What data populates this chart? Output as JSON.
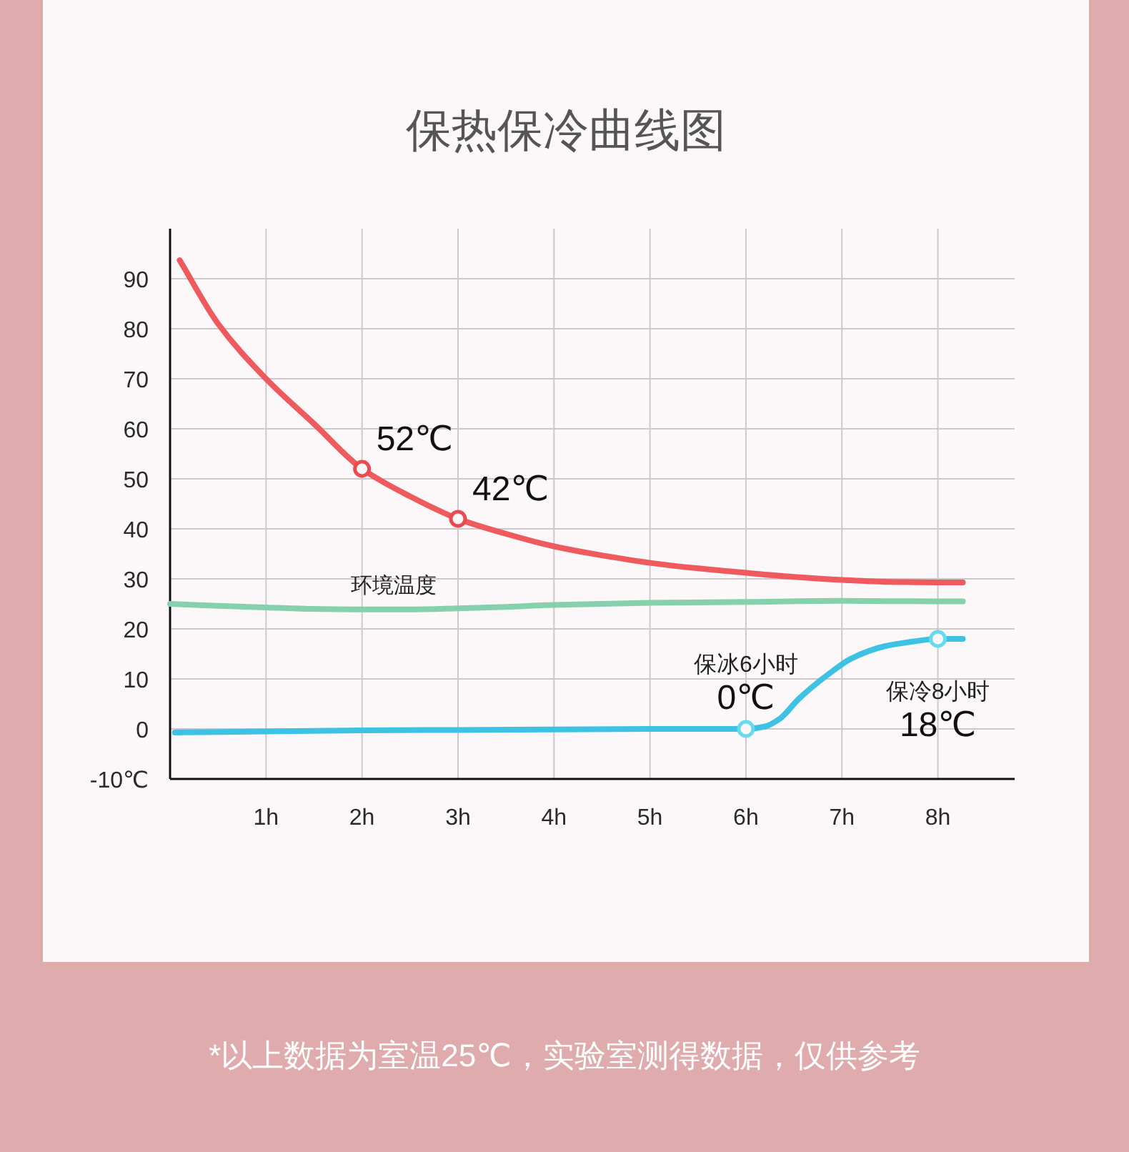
{
  "chart_data": {
    "type": "line",
    "title": "保热保冷曲线图",
    "annotations": [
      {
        "text": "保冰6小时",
        "x": 6,
        "y": 0
      },
      {
        "text": "保冷8小时",
        "x": 8,
        "y": 18
      },
      "*以上数据为室温25℃，实验室测得数据，仅供参考"
    ],
    "xlim": [
      0,
      8.8
    ],
    "xticks": [
      {
        "value": 1,
        "label": "1h"
      },
      {
        "value": 2,
        "label": "2h"
      },
      {
        "value": 3,
        "label": "3h"
      },
      {
        "value": 4,
        "label": "4h"
      },
      {
        "value": 5,
        "label": "5h"
      },
      {
        "value": 6,
        "label": "6h"
      },
      {
        "value": 7,
        "label": "7h"
      },
      {
        "value": 8,
        "label": "8h"
      }
    ],
    "ylim": [
      -10,
      100
    ],
    "yticks": [
      {
        "value": -10,
        "label": "-10℃"
      },
      0,
      10,
      20,
      30,
      40,
      50,
      60,
      70,
      80,
      90
    ],
    "grid": true,
    "series": [
      {
        "color": "#ef5a5e",
        "x": [
          0.1,
          0.5,
          1,
          1.5,
          2,
          2.5,
          3,
          3.5,
          4,
          4.5,
          5,
          5.5,
          6,
          6.5,
          7,
          7.5,
          8,
          8.26
        ],
        "values": [
          93.7,
          81,
          70,
          61,
          52,
          46.5,
          42,
          39,
          36.5,
          34.7,
          33.2,
          32.1,
          31.2,
          30.4,
          29.8,
          29.4,
          29.3,
          29.3
        ]
      },
      {
        "name": "环境温度",
        "color": "#86d0ab",
        "x": [
          0,
          0.5,
          1,
          1.5,
          2,
          2.5,
          3,
          3.5,
          4,
          5,
          6,
          7,
          8,
          8.26
        ],
        "values": [
          25,
          24.6,
          24.3,
          24,
          23.9,
          23.9,
          24.1,
          24.4,
          24.8,
          25.2,
          25.4,
          25.6,
          25.5,
          25.5
        ]
      },
      {
        "color": "#3dc2e4",
        "x": [
          0.05,
          1,
          2,
          3,
          4,
          5,
          6,
          6.2,
          6.35,
          6.55,
          6.85,
          7.1,
          7.44,
          7.75,
          8,
          8.26
        ],
        "values": [
          -0.7,
          -0.5,
          -0.3,
          -0.2,
          -0.1,
          0,
          0,
          0.5,
          2,
          6,
          10.8,
          14.1,
          16.5,
          17.5,
          18,
          18
        ]
      },
      {
        "type": "scatter",
        "marker": "circle",
        "color": "#ea4a50",
        "x": [
          2,
          3
        ],
        "values": [
          52,
          42
        ],
        "value_labels": [
          "52℃",
          "42℃"
        ]
      },
      {
        "type": "scatter",
        "marker": "circle",
        "color": "#66dbee",
        "x": [
          6,
          8
        ],
        "values": [
          0,
          18
        ],
        "value_labels": [
          "0℃",
          "18℃"
        ]
      }
    ]
  }
}
